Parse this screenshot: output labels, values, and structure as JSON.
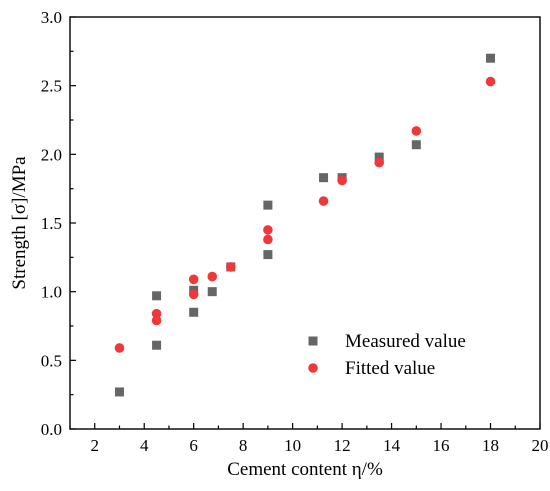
{
  "chart_data": {
    "type": "scatter",
    "xlabel": "Cement content η/%",
    "ylabel": "Strength [σ]/MPa",
    "xlim": [
      1,
      20
    ],
    "ylim": [
      0,
      3.0
    ],
    "x_ticks": [
      2,
      4,
      6,
      8,
      10,
      12,
      14,
      16,
      18,
      20
    ],
    "y_ticks": [
      0.0,
      0.5,
      1.0,
      1.5,
      2.0,
      2.5,
      3.0
    ],
    "y_tick_labels": [
      "0.0",
      "0.5",
      "1.0",
      "1.5",
      "2.0",
      "2.5",
      "3.0"
    ],
    "grid": false,
    "legend_position": "bottom-right",
    "series": [
      {
        "name": "Measured value",
        "marker": "square",
        "color": "#666666",
        "points": [
          {
            "x": 3,
            "y": 0.27
          },
          {
            "x": 4.5,
            "y": 0.61
          },
          {
            "x": 4.5,
            "y": 0.97
          },
          {
            "x": 6,
            "y": 0.85
          },
          {
            "x": 6,
            "y": 1.01
          },
          {
            "x": 6.75,
            "y": 1.0
          },
          {
            "x": 7.5,
            "y": 1.18
          },
          {
            "x": 9,
            "y": 1.27
          },
          {
            "x": 9,
            "y": 1.63
          },
          {
            "x": 11.25,
            "y": 1.83
          },
          {
            "x": 12,
            "y": 1.83
          },
          {
            "x": 13.5,
            "y": 1.98
          },
          {
            "x": 15,
            "y": 2.07
          },
          {
            "x": 18,
            "y": 2.7
          }
        ]
      },
      {
        "name": "Fitted value",
        "marker": "circle",
        "color": "#f0383b",
        "points": [
          {
            "x": 3,
            "y": 0.59
          },
          {
            "x": 4.5,
            "y": 0.79
          },
          {
            "x": 4.5,
            "y": 0.84
          },
          {
            "x": 6,
            "y": 0.98
          },
          {
            "x": 6,
            "y": 1.09
          },
          {
            "x": 6.75,
            "y": 1.11
          },
          {
            "x": 7.5,
            "y": 1.18
          },
          {
            "x": 9,
            "y": 1.38
          },
          {
            "x": 9,
            "y": 1.45
          },
          {
            "x": 11.25,
            "y": 1.66
          },
          {
            "x": 12,
            "y": 1.81
          },
          {
            "x": 13.5,
            "y": 1.94
          },
          {
            "x": 15,
            "y": 2.17
          },
          {
            "x": 18,
            "y": 2.53
          }
        ]
      }
    ]
  }
}
